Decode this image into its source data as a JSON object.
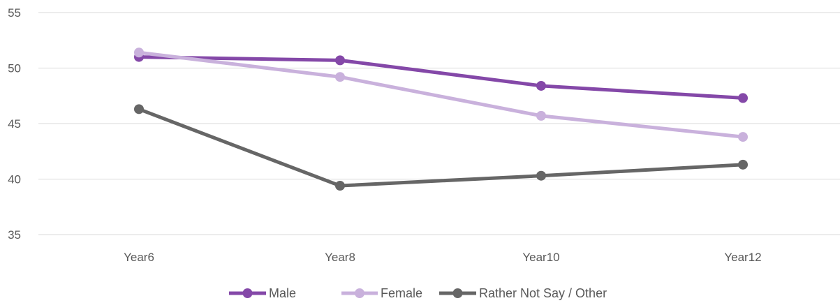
{
  "chart_data": {
    "type": "line",
    "title": "",
    "xlabel": "",
    "ylabel": "",
    "categories": [
      "Year6",
      "Year8",
      "Year10",
      "Year12"
    ],
    "ylim": [
      35,
      55
    ],
    "yticks": [
      35,
      40,
      45,
      50,
      55
    ],
    "grid": true,
    "legend": "bottom",
    "series": [
      {
        "name": "Male",
        "color": "#8448a8",
        "values": [
          51.0,
          50.7,
          48.4,
          47.3
        ]
      },
      {
        "name": "Female",
        "color": "#c9b1dc",
        "values": [
          51.4,
          49.2,
          45.7,
          43.8
        ]
      },
      {
        "name": "Rather Not Say / Other",
        "color": "#666666",
        "values": [
          46.3,
          39.4,
          40.3,
          41.3
        ]
      }
    ]
  }
}
